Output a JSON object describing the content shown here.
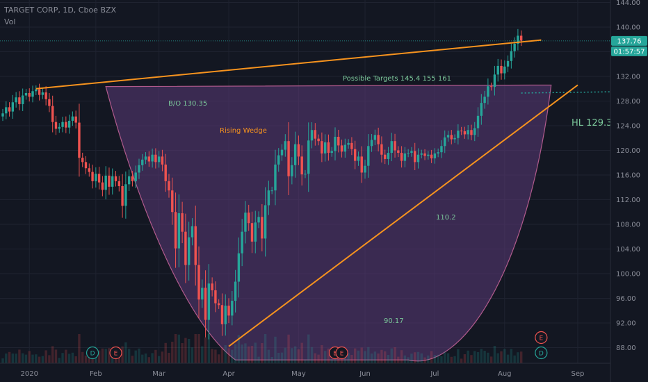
{
  "header": {
    "symbol_line": "TARGET CORP, 1D, Cboe BZX",
    "volume_label": "Vol"
  },
  "price_axis": {
    "current_price": "137.76",
    "countdown": "01:57:57"
  },
  "colors": {
    "background": "#131722",
    "up": "#26a69a",
    "down": "#ef5350",
    "trend": "#f7931e",
    "bowl_fill": "#5b3a78",
    "bowl_stroke": "#b05a8c",
    "annotation": "#7bc79a",
    "price_label": "#26a69a"
  },
  "annotations": {
    "possible_targets": "Possible Targets  145.4  155  161",
    "bo": "B/O 130.35",
    "rising_wedge": "Rising Wedge",
    "hl": "HL 129.3",
    "mid_value": "110.2",
    "low_value": "90.17"
  },
  "event_markers": [
    {
      "label": "D",
      "date_index": 27
    },
    {
      "label": "E",
      "date_index": 34
    },
    {
      "label": "E",
      "date_index": 100
    },
    {
      "label": "E",
      "date_index": 102
    },
    {
      "label": "D",
      "date_index": 162
    },
    {
      "label": "E",
      "date_index": 162
    }
  ],
  "chart_data": {
    "type": "candlestick",
    "title": "TARGET CORP, 1D, Cboe BZX",
    "ylim": [
      85,
      145
    ],
    "y_ticks": [
      88,
      92,
      96,
      100,
      104,
      108,
      112,
      116,
      120,
      124,
      128,
      132,
      136,
      140,
      144
    ],
    "y_tick_labels": [
      "88.00",
      "92.00",
      "96.00",
      "100.00",
      "104.00",
      "108.00",
      "112.00",
      "116.00",
      "120.00",
      "124.00",
      "128.00",
      "132.00",
      "136.00",
      "140.00",
      "144.00"
    ],
    "x_ticks": [
      {
        "label": "2020",
        "index": 8
      },
      {
        "label": "Feb",
        "index": 28
      },
      {
        "label": "Mar",
        "index": 47
      },
      {
        "label": "Apr",
        "index": 68
      },
      {
        "label": "May",
        "index": 89
      },
      {
        "label": "Jun",
        "index": 109
      },
      {
        "label": "Jul",
        "index": 130
      },
      {
        "label": "Aug",
        "index": 151
      },
      {
        "label": "Sep",
        "index": 173
      }
    ],
    "close": [
      126.0,
      127.0,
      126.3,
      127.8,
      128.6,
      127.5,
      128.9,
      129.3,
      128.7,
      129.6,
      129.9,
      129.0,
      129.4,
      128.3,
      127.2,
      124.6,
      123.5,
      123.8,
      124.6,
      123.7,
      124.8,
      125.5,
      124.5,
      118.8,
      118.1,
      117.1,
      116.5,
      115.0,
      116.2,
      114.8,
      113.6,
      115.9,
      114.1,
      115.8,
      115.0,
      114.2,
      111.0,
      114.5,
      115.8,
      115.0,
      116.4,
      117.6,
      118.5,
      119.0,
      118.2,
      119.3,
      118.1,
      119.0,
      117.7,
      115.0,
      113.5,
      110.0,
      104.1,
      109.8,
      106.8,
      101.4,
      105.9,
      107.7,
      101.4,
      95.8,
      97.7,
      92.5,
      98.4,
      97.3,
      95.2,
      94.9,
      91.8,
      94.8,
      93.2,
      95.6,
      98.7,
      103.3,
      106.8,
      109.9,
      108.2,
      105.2,
      108.3,
      109.2,
      105.7,
      111.1,
      113.5,
      113.5,
      117.7,
      119.2,
      120.1,
      121.5,
      115.8,
      117.6,
      121.0,
      119.0,
      116.1,
      116.2,
      121.6,
      123.3,
      121.9,
      121.5,
      119.5,
      121.3,
      119.6,
      119.9,
      122.2,
      120.8,
      119.8,
      120.9,
      121.2,
      120.2,
      118.3,
      119.0,
      116.4,
      117.5,
      120.7,
      121.7,
      122.5,
      121.0,
      119.3,
      118.6,
      119.6,
      121.5,
      120.0,
      119.6,
      118.3,
      119.5,
      119.6,
      119.9,
      118.1,
      119.3,
      119.5,
      119.1,
      119.3,
      118.7,
      119.5,
      119.7,
      120.7,
      122.1,
      122.5,
      121.8,
      122.0,
      123.2,
      123.1,
      122.6,
      123.3,
      122.5,
      123.6,
      125.6,
      127.7,
      128.7,
      130.4,
      130.3,
      132.3,
      133.7,
      132.5,
      133.6,
      134.5,
      136.1,
      137.3,
      138.6,
      137.8
    ],
    "last_price": 137.76,
    "annotation_values": [
      145.4,
      155,
      161,
      130.35,
      129.3,
      110.2,
      90.17
    ]
  }
}
